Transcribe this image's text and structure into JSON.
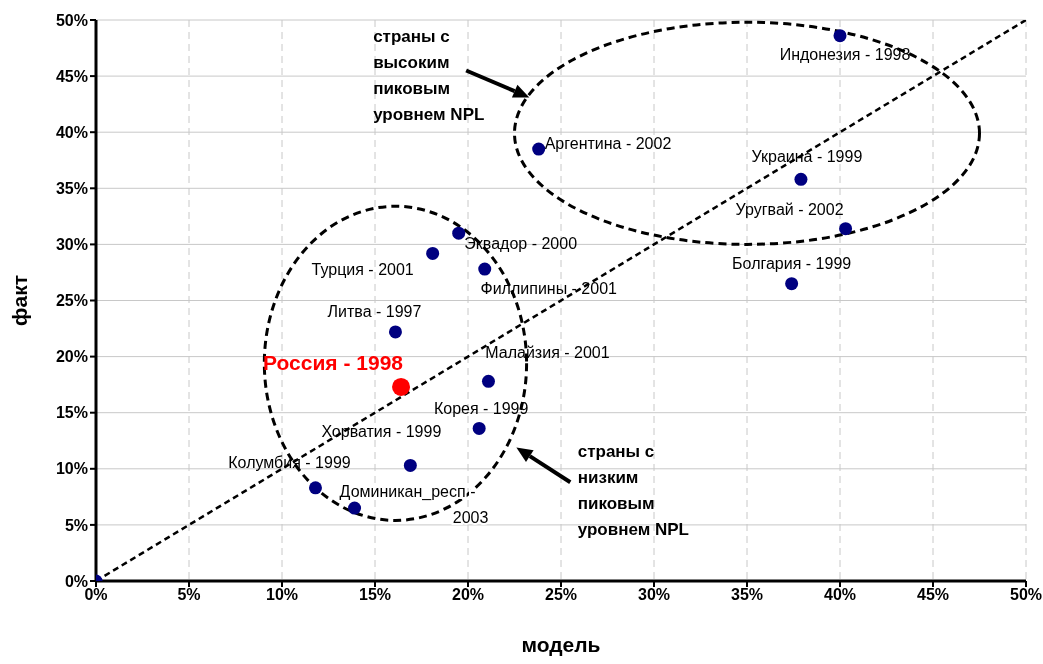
{
  "chart_data": {
    "type": "scatter",
    "xlabel": "модель",
    "ylabel": "факт",
    "xlim": [
      0,
      50
    ],
    "ylim": [
      0,
      50
    ],
    "xticks": [
      {
        "value": 0,
        "label": "0%"
      },
      {
        "value": 5,
        "label": "5%"
      },
      {
        "value": 10,
        "label": "10%"
      },
      {
        "value": 15,
        "label": "15%"
      },
      {
        "value": 20,
        "label": "20%"
      },
      {
        "value": 25,
        "label": "25%"
      },
      {
        "value": 30,
        "label": "30%"
      },
      {
        "value": 35,
        "label": "35%"
      },
      {
        "value": 40,
        "label": "40%"
      },
      {
        "value": 45,
        "label": "45%"
      },
      {
        "value": 50,
        "label": "50%"
      }
    ],
    "yticks": [
      {
        "value": 0,
        "label": "0%"
      },
      {
        "value": 5,
        "label": "5%"
      },
      {
        "value": 10,
        "label": "10%"
      },
      {
        "value": 15,
        "label": "15%"
      },
      {
        "value": 20,
        "label": "20%"
      },
      {
        "value": 25,
        "label": "25%"
      },
      {
        "value": 30,
        "label": "30%"
      },
      {
        "value": 35,
        "label": "35%"
      },
      {
        "value": 40,
        "label": "40%"
      },
      {
        "value": 45,
        "label": "45%"
      },
      {
        "value": 50,
        "label": "50%"
      }
    ],
    "grid": true,
    "legend": false,
    "marker": "circle",
    "series": [
      {
        "type": "line",
        "color": "#000000",
        "line_style": "dashed",
        "marker": "none",
        "x": [
          0,
          10,
          20,
          30,
          40,
          50
        ],
        "values": [
          0,
          10,
          20,
          30,
          40,
          50
        ]
      },
      {
        "color": "#000080",
        "x": [
          0
        ],
        "values": [
          0
        ]
      },
      {
        "name": "Индонезия - 1998",
        "color": "#000080",
        "x": [
          40.0
        ],
        "values": [
          48.6
        ]
      },
      {
        "name": "Аргентина - 2002",
        "color": "#000080",
        "x": [
          23.8
        ],
        "values": [
          38.5
        ]
      },
      {
        "name": "Украина - 1999",
        "color": "#000080",
        "x": [
          37.9
        ],
        "values": [
          35.8
        ]
      },
      {
        "name": "Уругвай - 2002",
        "color": "#000080",
        "x": [
          40.3
        ],
        "values": [
          31.4
        ]
      },
      {
        "name": "Болгария - 1999",
        "color": "#000080",
        "x": [
          37.4
        ],
        "values": [
          26.5
        ]
      },
      {
        "name": "Эквадор - 2000",
        "color": "#000080",
        "x": [
          19.5
        ],
        "values": [
          31.0
        ]
      },
      {
        "name": "Турция - 2001",
        "color": "#000080",
        "x": [
          18.1
        ],
        "values": [
          29.2
        ]
      },
      {
        "name": "Филлипины - 2001",
        "color": "#000080",
        "x": [
          20.9
        ],
        "values": [
          27.8
        ]
      },
      {
        "name": "Литва - 1997",
        "color": "#000080",
        "x": [
          16.1
        ],
        "values": [
          22.2
        ]
      },
      {
        "name": "Россия - 1998",
        "color": "#ff0000",
        "x": [
          16.4
        ],
        "values": [
          17.3
        ]
      },
      {
        "name": "Малайзия - 2001",
        "color": "#000080",
        "x": [
          21.1
        ],
        "values": [
          17.8
        ]
      },
      {
        "name": "Корея - 1999",
        "color": "#000080",
        "x": [
          20.6
        ],
        "values": [
          13.6
        ]
      },
      {
        "name": "Хорватия - 1999",
        "color": "#000080",
        "x": [
          16.9
        ],
        "values": [
          10.3
        ]
      },
      {
        "name": "Колумбия - 1999",
        "color": "#000080",
        "x": [
          11.8
        ],
        "values": [
          8.3
        ]
      },
      {
        "name": "Доминикан_респ - 2003",
        "color": "#000080",
        "x": [
          13.9
        ],
        "values": [
          6.5
        ]
      }
    ],
    "annotations": [
      "страны с\nвысоким\nпиковым\nуровнем NPL",
      "страны с\nнизким\nпиковым\nуровнем NPL"
    ]
  }
}
